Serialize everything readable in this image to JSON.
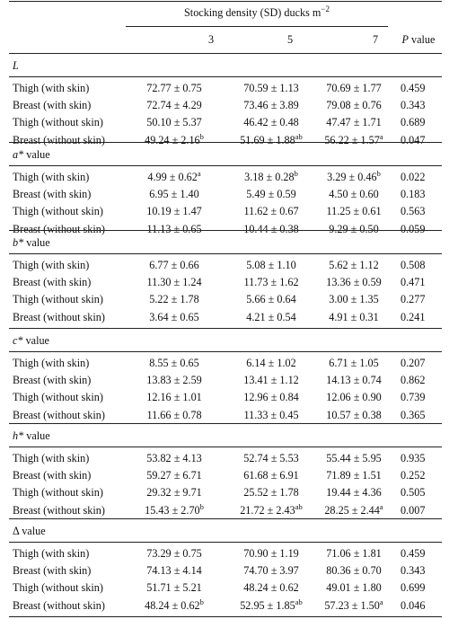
{
  "header": {
    "span_title": "Stocking density (SD) ducks m",
    "span_exponent": "−2",
    "columns": [
      "3",
      "5",
      "7"
    ],
    "p_label_italic": "P",
    "p_label_rest": " value"
  },
  "sections": [
    {
      "label_italic": "L",
      "label_rest": "",
      "rows": [
        {
          "label": "Thigh (with skin)",
          "v3": "72.77 ± 0.75",
          "s3": "",
          "v5": "70.59 ± 1.13",
          "s5": "",
          "v7": "70.69 ± 1.77",
          "s7": "",
          "p": "0.459"
        },
        {
          "label": "Breast (with skin)",
          "v3": "72.74 ± 4.29",
          "s3": "",
          "v5": "73.46 ± 3.89",
          "s5": "",
          "v7": "79.08 ± 0.76",
          "s7": "",
          "p": "0.343"
        },
        {
          "label": "Thigh (without skin)",
          "v3": "50.10 ± 5.37",
          "s3": "",
          "v5": "46.42 ± 0.48",
          "s5": "",
          "v7": "47.47 ± 1.71",
          "s7": "",
          "p": "0.689"
        },
        {
          "label": "Breast (without skin)",
          "v3": "49.24 ± 2.16",
          "s3": "b",
          "v5": "51.69 ± 1.88",
          "s5": "ab",
          "v7": "56.22 ± 1.57",
          "s7": "a",
          "p": "0.047"
        }
      ]
    },
    {
      "label_italic": "a*",
      "label_rest": " value",
      "rows": [
        {
          "label": "Thigh (with skin)",
          "v3": "4.99 ± 0.62",
          "s3": "a",
          "v5": "3.18 ± 0.28",
          "s5": "b",
          "v7": "3.29 ± 0.46",
          "s7": "b",
          "p": "0.022"
        },
        {
          "label": "Breast (with skin)",
          "v3": "6.95 ± 1.40",
          "s3": "",
          "v5": "5.49 ± 0.59",
          "s5": "",
          "v7": "4.50 ± 0.60",
          "s7": "",
          "p": "0.183"
        },
        {
          "label": "Thigh (without skin)",
          "v3": "10.19 ± 1.47",
          "s3": "",
          "v5": "11.62 ± 0.67",
          "s5": "",
          "v7": "11.25 ± 0.61",
          "s7": "",
          "p": "0.563"
        },
        {
          "label": "Breast (without skin)",
          "v3": "11.13 ± 0.65",
          "s3": "",
          "v5": "10.44 ± 0.38",
          "s5": "",
          "v7": "9.29 ± 0.50",
          "s7": "",
          "p": "0.059"
        }
      ]
    },
    {
      "label_italic": "b*",
      "label_rest": " value",
      "rows": [
        {
          "label": "Thigh (with skin)",
          "v3": "6.77 ± 0.66",
          "s3": "",
          "v5": "5.08 ± 1.10",
          "s5": "",
          "v7": "5.62 ± 1.12",
          "s7": "",
          "p": "0.508"
        },
        {
          "label": "Breast (with skin)",
          "v3": "11.30 ± 1.24",
          "s3": "",
          "v5": "11.73 ± 1.62",
          "s5": "",
          "v7": "13.36 ± 0.59",
          "s7": "",
          "p": "0.471"
        },
        {
          "label": "Thigh (without skin)",
          "v3": "5.22 ± 1.78",
          "s3": "",
          "v5": "5.66 ± 0.64",
          "s5": "",
          "v7": "3.00 ± 1.35",
          "s7": "",
          "p": "0.277"
        },
        {
          "label": "Breast (without skin)",
          "v3": "3.64 ± 0.65",
          "s3": "",
          "v5": "4.21 ± 0.54",
          "s5": "",
          "v7": "4.91 ± 0.31",
          "s7": "",
          "p": "0.241"
        }
      ]
    },
    {
      "label_italic": "c*",
      "label_rest": " value",
      "rows": [
        {
          "label": "Thigh (with skin)",
          "v3": "8.55 ± 0.65",
          "s3": "",
          "v5": "6.14 ± 1.02",
          "s5": "",
          "v7": "6.71 ± 1.05",
          "s7": "",
          "p": "0.207"
        },
        {
          "label": "Breast (with skin)",
          "v3": "13.83 ± 2.59",
          "s3": "",
          "v5": "13.41 ± 1.12",
          "s5": "",
          "v7": "14.13 ± 0.74",
          "s7": "",
          "p": "0.862"
        },
        {
          "label": "Thigh (without skin)",
          "v3": "12.16 ± 1.01",
          "s3": "",
          "v5": "12.96 ± 0.84",
          "s5": "",
          "v7": "12.06 ± 0.90",
          "s7": "",
          "p": "0.739"
        },
        {
          "label": "Breast (without skin)",
          "v3": "11.66 ± 0.78",
          "s3": "",
          "v5": "11.33 ± 0.45",
          "s5": "",
          "v7": "10.57 ± 0.38",
          "s7": "",
          "p": "0.365"
        }
      ]
    },
    {
      "label_italic": "h*",
      "label_rest": " value",
      "rows": [
        {
          "label": "Thigh (with skin)",
          "v3": "53.82 ± 4.13",
          "s3": "",
          "v5": "52.74 ± 5.53",
          "s5": "",
          "v7": "55.44 ± 5.95",
          "s7": "",
          "p": "0.935"
        },
        {
          "label": "Breast (with skin)",
          "v3": "59.27 ± 6.71",
          "s3": "",
          "v5": "61.68 ± 6.91",
          "s5": "",
          "v7": "71.89 ± 1.51",
          "s7": "",
          "p": "0.252"
        },
        {
          "label": "Thigh (without skin)",
          "v3": "29.32 ± 9.71",
          "s3": "",
          "v5": "25.52 ± 1.78",
          "s5": "",
          "v7": "19.44 ± 4.36",
          "s7": "",
          "p": "0.505"
        },
        {
          "label": "Breast (without skin)",
          "v3": "15.43 ± 2.70",
          "s3": "b",
          "v5": "21.72 ± 2.43",
          "s5": "ab",
          "v7": "28.25 ± 2.44",
          "s7": "a",
          "p": "0.007"
        }
      ]
    },
    {
      "label_italic": "",
      "label_rest": "Δ value",
      "rows": [
        {
          "label": "Thigh (with skin)",
          "v3": "73.29 ± 0.75",
          "s3": "",
          "v5": "70.90 ± 1.19",
          "s5": "",
          "v7": "71.06 ± 1.81",
          "s7": "",
          "p": "0.459"
        },
        {
          "label": "Breast (with skin)",
          "v3": "74.13 ± 4.14",
          "s3": "",
          "v5": "74.70 ± 3.97",
          "s5": "",
          "v7": "80.36 ± 0.70",
          "s7": "",
          "p": "0.343"
        },
        {
          "label": "Thigh (without skin)",
          "v3": "51.71 ± 5.21",
          "s3": "",
          "v5": "48.24 ± 0.62",
          "s5": "",
          "v7": "49.01 ± 1.80",
          "s7": "",
          "p": "0.699"
        },
        {
          "label": "Breast (without skin)",
          "v3": "48.24 ± 0.62",
          "s3": "b",
          "v5": "52.95 ± 1.85",
          "s5": "ab",
          "v7": "57.23 ± 1.50",
          "s7": "a",
          "p": "0.046"
        }
      ]
    }
  ]
}
